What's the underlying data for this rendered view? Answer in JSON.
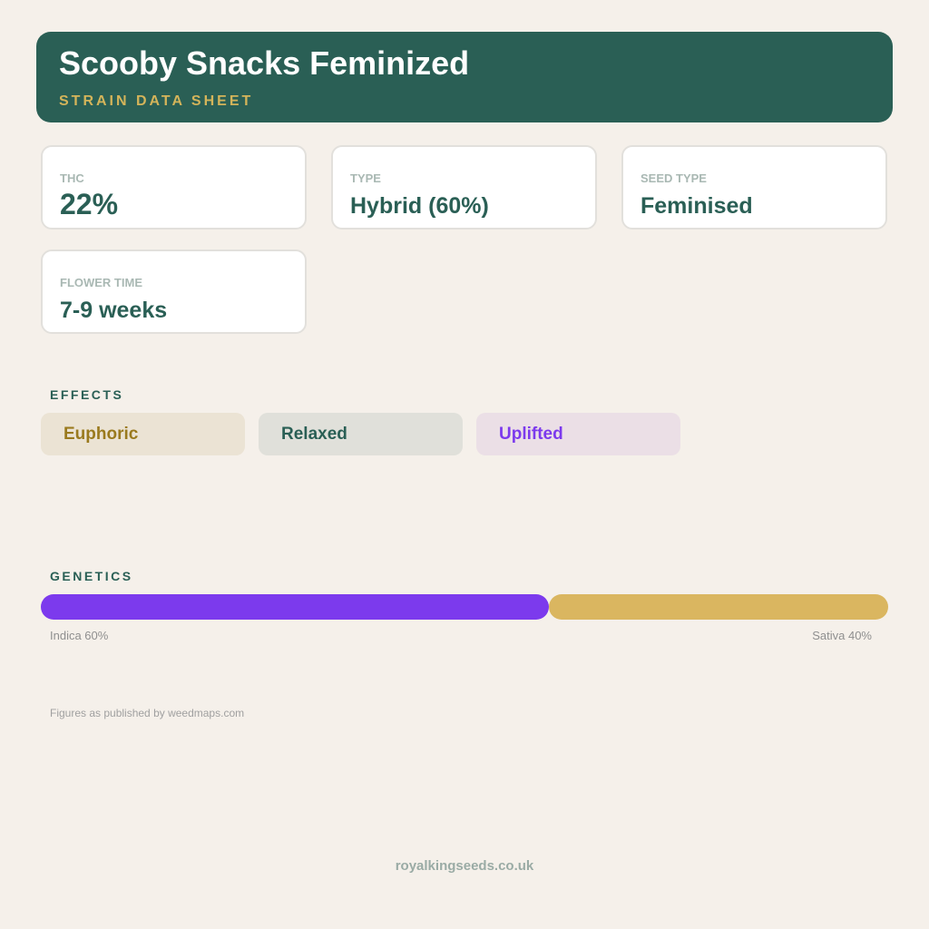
{
  "header": {
    "title": "Scooby Snacks Feminized",
    "subtitle": "STRAIN DATA SHEET"
  },
  "stats": [
    {
      "label": "THC",
      "value": "22%"
    },
    {
      "label": "TYPE",
      "value": "Hybrid (60%)"
    },
    {
      "label": "SEED TYPE",
      "value": "Feminised"
    },
    {
      "label": "FLOWER TIME",
      "value": "7-9 weeks"
    }
  ],
  "effects": {
    "title": "EFFECTS",
    "tags": [
      "Euphoric",
      "Relaxed",
      "Uplifted"
    ]
  },
  "genetics": {
    "title": "GENETICS",
    "segments": [
      {
        "label": "Indica 60%",
        "value": 60,
        "color": "#7c3aed"
      },
      {
        "label": "Sativa 40%",
        "value": 40,
        "color": "#dab660"
      }
    ]
  },
  "footnote": "Figures as published by weedmaps.com",
  "footer": "royalkingseeds.co.uk"
}
